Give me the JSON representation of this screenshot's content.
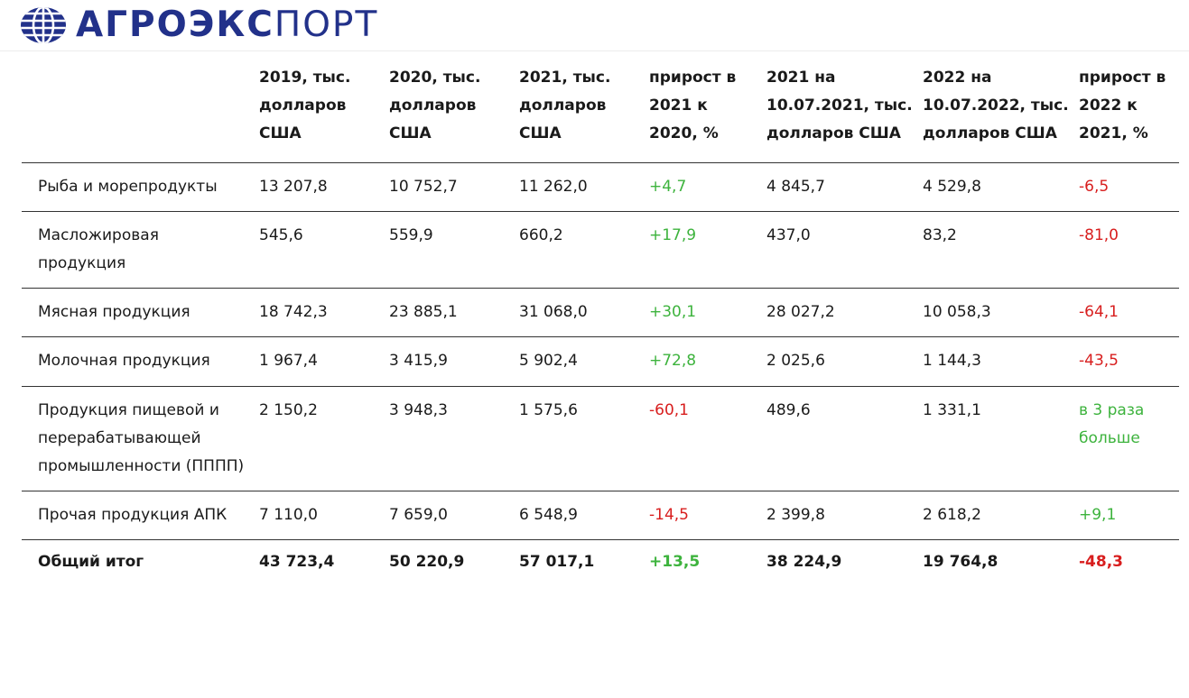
{
  "brand": {
    "name_bold": "АГРОЭКС",
    "name_light": "ПОРТ",
    "color": "#22318a"
  },
  "colors": {
    "positive": "#3db33d",
    "negative": "#d81e1e"
  },
  "table": {
    "headers": [
      "",
      "2019, тыс. долларов США",
      "2020, тыс. долларов США",
      "2021, тыс. долларов США",
      "прирост в 2021 к 2020, %",
      "2021 на 10.07.2021, тыс. долларов США",
      "2022 на 10.07.2022, тыс. долларов США",
      "прирост в 2022 к 2021, %"
    ],
    "rows": [
      {
        "cells": [
          "Рыба и морепродукты",
          "13 207,8",
          "10 752,7",
          "11 262,0",
          "+4,7",
          "4 845,7",
          "4 529,8",
          "-6,5"
        ],
        "trend": [
          "pos",
          "neg"
        ]
      },
      {
        "cells": [
          "Масложировая продукция",
          "545,6",
          "559,9",
          "660,2",
          "+17,9",
          "437,0",
          "83,2",
          "-81,0"
        ],
        "trend": [
          "pos",
          "neg"
        ]
      },
      {
        "cells": [
          "Мясная продукция",
          "18 742,3",
          "23 885,1",
          "31 068,0",
          "+30,1",
          "28 027,2",
          "10 058,3",
          "-64,1"
        ],
        "trend": [
          "pos",
          "neg"
        ]
      },
      {
        "cells": [
          "Молочная продукция",
          "1 967,4",
          "3 415,9",
          "5 902,4",
          "+72,8",
          "2 025,6",
          "1 144,3",
          "-43,5"
        ],
        "trend": [
          "pos",
          "neg"
        ]
      },
      {
        "cells": [
          "Продукция пищевой и перерабатывающей промышленности (ПППП)",
          "2 150,2",
          "3 948,3",
          "1 575,6",
          "-60,1",
          "489,6",
          "1 331,1",
          "в 3 раза больше"
        ],
        "trend": [
          "neg",
          "pos"
        ]
      },
      {
        "cells": [
          "Прочая продукция АПК",
          "7 110,0",
          "7 659,0",
          "6 548,9",
          "-14,5",
          "2 399,8",
          "2 618,2",
          "+9,1"
        ],
        "trend": [
          "neg",
          "pos"
        ]
      },
      {
        "cells": [
          "Общий итог",
          "43 723,4",
          "50 220,9",
          "57 017,1",
          "+13,5",
          "38 224,9",
          "19 764,8",
          "-48,3"
        ],
        "trend": [
          "pos",
          "neg"
        ],
        "total": true
      }
    ]
  }
}
